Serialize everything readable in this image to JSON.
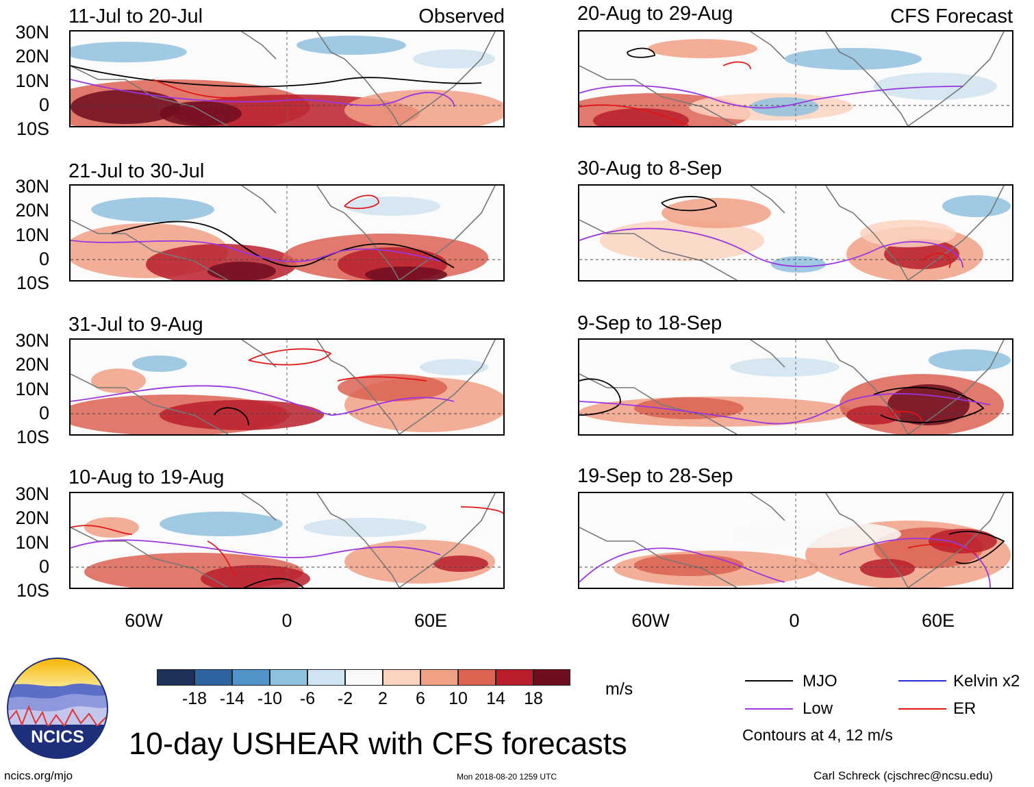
{
  "header": {
    "left_tag": "Observed",
    "right_tag": "CFS Forecast"
  },
  "panels": {
    "left": [
      {
        "title": "11-Jul to 20-Jul"
      },
      {
        "title": "21-Jul to 30-Jul"
      },
      {
        "title": "31-Jul to 9-Aug"
      },
      {
        "title": "10-Aug to 19-Aug"
      }
    ],
    "right": [
      {
        "title": "20-Aug to 29-Aug"
      },
      {
        "title": "30-Aug to 8-Sep"
      },
      {
        "title": "9-Sep to 18-Sep"
      },
      {
        "title": "19-Sep to 28-Sep"
      }
    ]
  },
  "axes": {
    "lat_labels": [
      "30N",
      "20N",
      "10N",
      "0",
      "10S"
    ],
    "lon_labels": [
      "60W",
      "0",
      "60E"
    ]
  },
  "colorbar": {
    "unit": "m/s",
    "tick_labels": [
      "-18",
      "-14",
      "-10",
      "-6",
      "-2",
      "2",
      "6",
      "10",
      "14",
      "18"
    ],
    "colors": [
      "#1f3158",
      "#2e62a3",
      "#4f93c8",
      "#8fc0de",
      "#cfe3f0",
      "#f9f9f9",
      "#fbd3c0",
      "#f0a084",
      "#dc6252",
      "#ba1e2c",
      "#6e0d1e"
    ]
  },
  "legend": {
    "items": [
      {
        "label": "MJO",
        "color": "#000000"
      },
      {
        "label": "Kelvin x2",
        "color": "#2a2ad8"
      },
      {
        "label": "Low",
        "color": "#9a35e0"
      },
      {
        "label": "ER",
        "color": "#e01616"
      }
    ],
    "contour_note": "Contours at 4, 12 m/s"
  },
  "logo": {
    "text": "NCICS"
  },
  "main_title": "10-day USHEAR with CFS forecasts",
  "footer": {
    "left": "ncics.org/mjo",
    "center": "Mon 2018-08-20 1259 UTC",
    "right": "Carl Schreck (cjschrec@ncsu.edu)"
  }
}
